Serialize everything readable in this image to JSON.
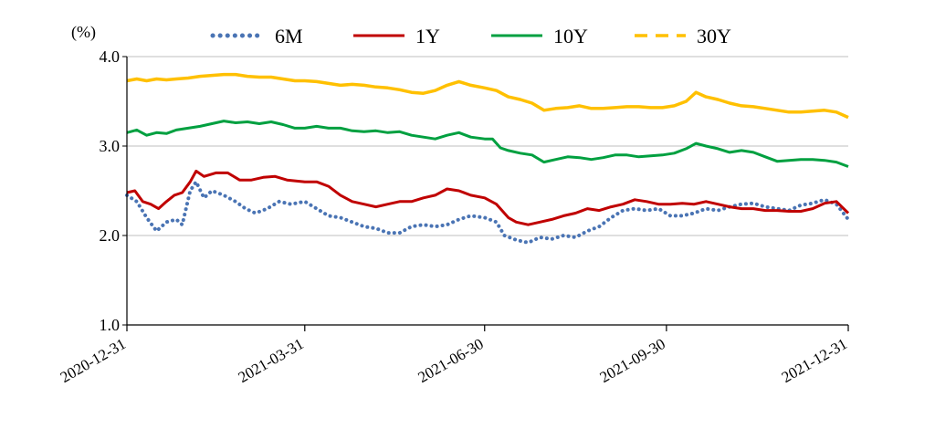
{
  "chart_data": {
    "type": "line",
    "title": "",
    "xlabel": "",
    "ylabel": "(%)",
    "ylim": [
      1.0,
      4.0
    ],
    "xlim": [
      "2020-12-31",
      "2021-12-31"
    ],
    "y_ticks": [
      "1.0",
      "2.0",
      "3.0",
      "4.0"
    ],
    "x_ticks": [
      "2020-12-31",
      "2021-03-31",
      "2021-06-30",
      "2021-09-30",
      "2021-12-31"
    ],
    "grid": "horizontal",
    "legend_position": "top",
    "series": [
      {
        "name": "6M",
        "style": "dotted",
        "color": "#4a74b4",
        "points": [
          [
            "2020-12-31",
            2.45
          ],
          [
            "2021-01-05",
            2.38
          ],
          [
            "2021-01-10",
            2.2
          ],
          [
            "2021-01-15",
            2.05
          ],
          [
            "2021-01-20",
            2.15
          ],
          [
            "2021-01-25",
            2.18
          ],
          [
            "2021-01-28",
            2.12
          ],
          [
            "2021-02-01",
            2.5
          ],
          [
            "2021-02-04",
            2.6
          ],
          [
            "2021-02-08",
            2.42
          ],
          [
            "2021-02-12",
            2.5
          ],
          [
            "2021-02-18",
            2.45
          ],
          [
            "2021-02-24",
            2.38
          ],
          [
            "2021-03-01",
            2.3
          ],
          [
            "2021-03-06",
            2.25
          ],
          [
            "2021-03-12",
            2.3
          ],
          [
            "2021-03-18",
            2.38
          ],
          [
            "2021-03-24",
            2.35
          ],
          [
            "2021-03-31",
            2.38
          ],
          [
            "2021-04-06",
            2.3
          ],
          [
            "2021-04-12",
            2.22
          ],
          [
            "2021-04-18",
            2.2
          ],
          [
            "2021-04-24",
            2.15
          ],
          [
            "2021-04-30",
            2.1
          ],
          [
            "2021-05-06",
            2.08
          ],
          [
            "2021-05-12",
            2.03
          ],
          [
            "2021-05-18",
            2.03
          ],
          [
            "2021-05-24",
            2.1
          ],
          [
            "2021-05-30",
            2.12
          ],
          [
            "2021-06-05",
            2.1
          ],
          [
            "2021-06-11",
            2.12
          ],
          [
            "2021-06-17",
            2.18
          ],
          [
            "2021-06-23",
            2.22
          ],
          [
            "2021-06-30",
            2.2
          ],
          [
            "2021-07-06",
            2.15
          ],
          [
            "2021-07-10",
            2.0
          ],
          [
            "2021-07-16",
            1.95
          ],
          [
            "2021-07-22",
            1.92
          ],
          [
            "2021-07-28",
            1.98
          ],
          [
            "2021-08-03",
            1.96
          ],
          [
            "2021-08-09",
            2.0
          ],
          [
            "2021-08-15",
            1.98
          ],
          [
            "2021-08-21",
            2.05
          ],
          [
            "2021-08-27",
            2.1
          ],
          [
            "2021-09-02",
            2.2
          ],
          [
            "2021-09-08",
            2.28
          ],
          [
            "2021-09-14",
            2.3
          ],
          [
            "2021-09-20",
            2.28
          ],
          [
            "2021-09-26",
            2.3
          ],
          [
            "2021-10-02",
            2.22
          ],
          [
            "2021-10-08",
            2.22
          ],
          [
            "2021-10-14",
            2.25
          ],
          [
            "2021-10-20",
            2.3
          ],
          [
            "2021-10-26",
            2.28
          ],
          [
            "2021-11-01",
            2.32
          ],
          [
            "2021-11-07",
            2.35
          ],
          [
            "2021-11-13",
            2.36
          ],
          [
            "2021-11-19",
            2.32
          ],
          [
            "2021-11-25",
            2.3
          ],
          [
            "2021-12-01",
            2.28
          ],
          [
            "2021-12-07",
            2.34
          ],
          [
            "2021-12-13",
            2.36
          ],
          [
            "2021-12-19",
            2.4
          ],
          [
            "2021-12-25",
            2.35
          ],
          [
            "2021-12-31",
            2.18
          ]
        ]
      },
      {
        "name": "1Y",
        "style": "solid",
        "color": "#c00000",
        "points": [
          [
            "2020-12-31",
            2.48
          ],
          [
            "2021-01-04",
            2.5
          ],
          [
            "2021-01-08",
            2.38
          ],
          [
            "2021-01-12",
            2.35
          ],
          [
            "2021-01-16",
            2.3
          ],
          [
            "2021-01-20",
            2.38
          ],
          [
            "2021-01-24",
            2.45
          ],
          [
            "2021-01-28",
            2.48
          ],
          [
            "2021-02-01",
            2.6
          ],
          [
            "2021-02-04",
            2.72
          ],
          [
            "2021-02-08",
            2.66
          ],
          [
            "2021-02-14",
            2.7
          ],
          [
            "2021-02-20",
            2.7
          ],
          [
            "2021-02-26",
            2.62
          ],
          [
            "2021-03-04",
            2.62
          ],
          [
            "2021-03-10",
            2.65
          ],
          [
            "2021-03-16",
            2.66
          ],
          [
            "2021-03-22",
            2.62
          ],
          [
            "2021-03-31",
            2.6
          ],
          [
            "2021-04-06",
            2.6
          ],
          [
            "2021-04-12",
            2.55
          ],
          [
            "2021-04-18",
            2.45
          ],
          [
            "2021-04-24",
            2.38
          ],
          [
            "2021-04-30",
            2.35
          ],
          [
            "2021-05-06",
            2.32
          ],
          [
            "2021-05-12",
            2.35
          ],
          [
            "2021-05-18",
            2.38
          ],
          [
            "2021-05-24",
            2.38
          ],
          [
            "2021-05-30",
            2.42
          ],
          [
            "2021-06-05",
            2.45
          ],
          [
            "2021-06-11",
            2.52
          ],
          [
            "2021-06-17",
            2.5
          ],
          [
            "2021-06-23",
            2.45
          ],
          [
            "2021-06-30",
            2.42
          ],
          [
            "2021-07-06",
            2.35
          ],
          [
            "2021-07-12",
            2.2
          ],
          [
            "2021-07-16",
            2.15
          ],
          [
            "2021-07-22",
            2.12
          ],
          [
            "2021-07-28",
            2.15
          ],
          [
            "2021-08-03",
            2.18
          ],
          [
            "2021-08-09",
            2.22
          ],
          [
            "2021-08-15",
            2.25
          ],
          [
            "2021-08-21",
            2.3
          ],
          [
            "2021-08-27",
            2.28
          ],
          [
            "2021-09-02",
            2.32
          ],
          [
            "2021-09-08",
            2.35
          ],
          [
            "2021-09-14",
            2.4
          ],
          [
            "2021-09-20",
            2.38
          ],
          [
            "2021-09-26",
            2.35
          ],
          [
            "2021-10-02",
            2.35
          ],
          [
            "2021-10-08",
            2.36
          ],
          [
            "2021-10-14",
            2.35
          ],
          [
            "2021-10-20",
            2.38
          ],
          [
            "2021-10-26",
            2.35
          ],
          [
            "2021-11-01",
            2.32
          ],
          [
            "2021-11-07",
            2.3
          ],
          [
            "2021-11-13",
            2.3
          ],
          [
            "2021-11-19",
            2.28
          ],
          [
            "2021-11-25",
            2.28
          ],
          [
            "2021-12-01",
            2.27
          ],
          [
            "2021-12-07",
            2.27
          ],
          [
            "2021-12-13",
            2.3
          ],
          [
            "2021-12-19",
            2.36
          ],
          [
            "2021-12-25",
            2.38
          ],
          [
            "2021-12-31",
            2.25
          ]
        ]
      },
      {
        "name": "10Y",
        "style": "solid",
        "color": "#00a040",
        "points": [
          [
            "2020-12-31",
            3.15
          ],
          [
            "2021-01-05",
            3.18
          ],
          [
            "2021-01-10",
            3.12
          ],
          [
            "2021-01-15",
            3.15
          ],
          [
            "2021-01-20",
            3.14
          ],
          [
            "2021-01-25",
            3.18
          ],
          [
            "2021-01-31",
            3.2
          ],
          [
            "2021-02-06",
            3.22
          ],
          [
            "2021-02-12",
            3.25
          ],
          [
            "2021-02-18",
            3.28
          ],
          [
            "2021-02-24",
            3.26
          ],
          [
            "2021-03-02",
            3.27
          ],
          [
            "2021-03-08",
            3.25
          ],
          [
            "2021-03-14",
            3.27
          ],
          [
            "2021-03-20",
            3.24
          ],
          [
            "2021-03-26",
            3.2
          ],
          [
            "2021-03-31",
            3.2
          ],
          [
            "2021-04-06",
            3.22
          ],
          [
            "2021-04-12",
            3.2
          ],
          [
            "2021-04-18",
            3.2
          ],
          [
            "2021-04-24",
            3.17
          ],
          [
            "2021-04-30",
            3.16
          ],
          [
            "2021-05-06",
            3.17
          ],
          [
            "2021-05-12",
            3.15
          ],
          [
            "2021-05-18",
            3.16
          ],
          [
            "2021-05-24",
            3.12
          ],
          [
            "2021-05-30",
            3.1
          ],
          [
            "2021-06-05",
            3.08
          ],
          [
            "2021-06-11",
            3.12
          ],
          [
            "2021-06-17",
            3.15
          ],
          [
            "2021-06-23",
            3.1
          ],
          [
            "2021-06-30",
            3.08
          ],
          [
            "2021-07-04",
            3.08
          ],
          [
            "2021-07-08",
            2.98
          ],
          [
            "2021-07-12",
            2.95
          ],
          [
            "2021-07-18",
            2.92
          ],
          [
            "2021-07-24",
            2.9
          ],
          [
            "2021-07-30",
            2.82
          ],
          [
            "2021-08-05",
            2.85
          ],
          [
            "2021-08-11",
            2.88
          ],
          [
            "2021-08-17",
            2.87
          ],
          [
            "2021-08-23",
            2.85
          ],
          [
            "2021-08-29",
            2.87
          ],
          [
            "2021-09-04",
            2.9
          ],
          [
            "2021-09-10",
            2.9
          ],
          [
            "2021-09-16",
            2.88
          ],
          [
            "2021-09-22",
            2.89
          ],
          [
            "2021-09-28",
            2.9
          ],
          [
            "2021-10-04",
            2.92
          ],
          [
            "2021-10-10",
            2.97
          ],
          [
            "2021-10-15",
            3.03
          ],
          [
            "2021-10-20",
            3.0
          ],
          [
            "2021-10-26",
            2.97
          ],
          [
            "2021-11-01",
            2.93
          ],
          [
            "2021-11-07",
            2.95
          ],
          [
            "2021-11-13",
            2.93
          ],
          [
            "2021-11-19",
            2.88
          ],
          [
            "2021-11-25",
            2.83
          ],
          [
            "2021-12-01",
            2.84
          ],
          [
            "2021-12-07",
            2.85
          ],
          [
            "2021-12-13",
            2.85
          ],
          [
            "2021-12-19",
            2.84
          ],
          [
            "2021-12-25",
            2.82
          ],
          [
            "2021-12-31",
            2.77
          ]
        ]
      },
      {
        "name": "30Y",
        "style": "dashed",
        "color": "#ffc000",
        "points": [
          [
            "2020-12-31",
            3.73
          ],
          [
            "2021-01-05",
            3.75
          ],
          [
            "2021-01-10",
            3.73
          ],
          [
            "2021-01-15",
            3.75
          ],
          [
            "2021-01-20",
            3.74
          ],
          [
            "2021-01-25",
            3.75
          ],
          [
            "2021-01-31",
            3.76
          ],
          [
            "2021-02-06",
            3.78
          ],
          [
            "2021-02-12",
            3.79
          ],
          [
            "2021-02-18",
            3.8
          ],
          [
            "2021-02-24",
            3.8
          ],
          [
            "2021-03-02",
            3.78
          ],
          [
            "2021-03-08",
            3.77
          ],
          [
            "2021-03-14",
            3.77
          ],
          [
            "2021-03-20",
            3.75
          ],
          [
            "2021-03-26",
            3.73
          ],
          [
            "2021-03-31",
            3.73
          ],
          [
            "2021-04-06",
            3.72
          ],
          [
            "2021-04-12",
            3.7
          ],
          [
            "2021-04-18",
            3.68
          ],
          [
            "2021-04-24",
            3.69
          ],
          [
            "2021-04-30",
            3.68
          ],
          [
            "2021-05-06",
            3.66
          ],
          [
            "2021-05-12",
            3.65
          ],
          [
            "2021-05-18",
            3.63
          ],
          [
            "2021-05-24",
            3.6
          ],
          [
            "2021-05-30",
            3.59
          ],
          [
            "2021-06-05",
            3.62
          ],
          [
            "2021-06-11",
            3.68
          ],
          [
            "2021-06-17",
            3.72
          ],
          [
            "2021-06-23",
            3.68
          ],
          [
            "2021-06-30",
            3.65
          ],
          [
            "2021-07-06",
            3.62
          ],
          [
            "2021-07-12",
            3.55
          ],
          [
            "2021-07-18",
            3.52
          ],
          [
            "2021-07-24",
            3.48
          ],
          [
            "2021-07-30",
            3.4
          ],
          [
            "2021-08-05",
            3.42
          ],
          [
            "2021-08-11",
            3.43
          ],
          [
            "2021-08-17",
            3.45
          ],
          [
            "2021-08-23",
            3.42
          ],
          [
            "2021-08-29",
            3.42
          ],
          [
            "2021-09-04",
            3.43
          ],
          [
            "2021-09-10",
            3.44
          ],
          [
            "2021-09-16",
            3.44
          ],
          [
            "2021-09-22",
            3.43
          ],
          [
            "2021-09-28",
            3.43
          ],
          [
            "2021-10-04",
            3.45
          ],
          [
            "2021-10-10",
            3.5
          ],
          [
            "2021-10-15",
            3.6
          ],
          [
            "2021-10-20",
            3.55
          ],
          [
            "2021-10-26",
            3.52
          ],
          [
            "2021-11-01",
            3.48
          ],
          [
            "2021-11-07",
            3.45
          ],
          [
            "2021-11-13",
            3.44
          ],
          [
            "2021-11-19",
            3.42
          ],
          [
            "2021-11-25",
            3.4
          ],
          [
            "2021-12-01",
            3.38
          ],
          [
            "2021-12-07",
            3.38
          ],
          [
            "2021-12-13",
            3.39
          ],
          [
            "2021-12-19",
            3.4
          ],
          [
            "2021-12-25",
            3.38
          ],
          [
            "2021-12-31",
            3.32
          ]
        ]
      }
    ]
  }
}
